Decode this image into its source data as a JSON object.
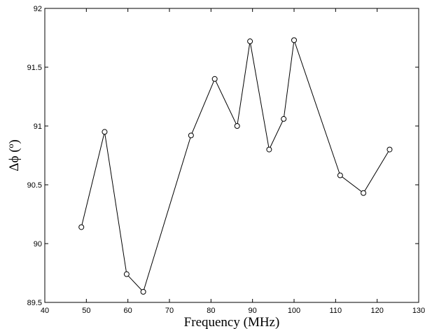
{
  "chart_data": {
    "type": "line",
    "title": "",
    "xlabel": "Frequency (MHz)",
    "ylabel": "Δϕ (º)",
    "xlim": [
      40,
      130
    ],
    "ylim": [
      89.5,
      92
    ],
    "xticks": [
      40,
      50,
      60,
      70,
      80,
      90,
      100,
      110,
      120,
      130
    ],
    "yticks": [
      89.5,
      90,
      90.5,
      91,
      91.5,
      92
    ],
    "xtick_labels": [
      "40",
      "50",
      "60",
      "70",
      "80",
      "90",
      "100",
      "110",
      "120",
      "130"
    ],
    "ytick_labels": [
      "89.5",
      "90",
      "90.5",
      "91",
      "91.5",
      "92"
    ],
    "grid": false,
    "legend": "none",
    "marker": "open-circle",
    "line_color": "#000000",
    "series": [
      {
        "x": [
          48.8,
          54.4,
          59.7,
          63.7,
          75.2,
          80.9,
          86.3,
          89.4,
          94.0,
          97.5,
          100.0,
          111.1,
          116.7,
          123.0
        ],
        "y": [
          90.14,
          90.95,
          89.74,
          89.59,
          90.92,
          91.4,
          91.0,
          91.72,
          90.8,
          91.06,
          91.73,
          90.58,
          90.43,
          90.8
        ]
      }
    ]
  }
}
